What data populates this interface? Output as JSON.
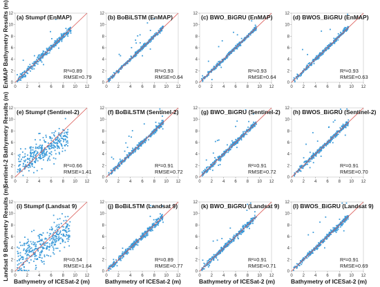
{
  "figure": {
    "row_labels": [
      "EnMAP Bathymetry Results (m)",
      "Sentinel-2 Bathymetry Results (m)",
      "Landsat 9 Bathymetry Results (m)"
    ],
    "col_label": "Bathymetry of ICESat-2 (m)",
    "point_color": "#3a9ad9",
    "line_color": "#d9534f"
  },
  "chart_data": [
    {
      "type": "scatter",
      "title": "(a) Stumpf (EnMAP)",
      "r2": "R²=0.89",
      "rmse": "RMSE=0.79",
      "xlim": [
        0,
        12
      ],
      "ylim": [
        0,
        12
      ],
      "xticks": [
        0,
        2,
        4,
        6,
        8,
        10,
        12
      ],
      "yticks": [
        0,
        2,
        4,
        6,
        8,
        10,
        12
      ],
      "x_range": [
        0.3,
        9.3
      ],
      "correlation": 0.89,
      "one_to_one_line": true
    },
    {
      "type": "scatter",
      "title": "(b) BoBiLSTM (EnMAP)",
      "r2": "R²=0.93",
      "rmse": "RMSE=0.64",
      "xlim": [
        0,
        12
      ],
      "ylim": [
        0,
        12
      ],
      "xticks": [
        0,
        2,
        4,
        6,
        8,
        10,
        12
      ],
      "yticks": [
        0,
        2,
        4,
        6,
        8,
        10,
        12
      ],
      "x_range": [
        0.3,
        9.5
      ],
      "correlation": 0.93,
      "one_to_one_line": true
    },
    {
      "type": "scatter",
      "title": "(c) BWO_BiGRU (EnMAP)",
      "r2": "R²=0.93",
      "rmse": "RMSE=0.64",
      "xlim": [
        0,
        12
      ],
      "ylim": [
        0,
        12
      ],
      "xticks": [
        0,
        2,
        4,
        6,
        8,
        10,
        12
      ],
      "yticks": [
        0,
        2,
        4,
        6,
        8,
        10,
        12
      ],
      "x_range": [
        0.3,
        9.5
      ],
      "correlation": 0.93,
      "one_to_one_line": true
    },
    {
      "type": "scatter",
      "title": "(d) BWOS_BiGRU (EnMAP)",
      "r2": "R²=0.93",
      "rmse": "RMSE=0.63",
      "xlim": [
        0,
        12
      ],
      "ylim": [
        0,
        12
      ],
      "xticks": [
        0,
        2,
        4,
        6,
        8,
        10,
        12
      ],
      "yticks": [
        0,
        2,
        4,
        6,
        8,
        10,
        12
      ],
      "x_range": [
        0.3,
        9.5
      ],
      "correlation": 0.93,
      "one_to_one_line": true
    },
    {
      "type": "scatter",
      "title": "(e) Stumpf (Sentinel-2)",
      "r2": "R²=0.66",
      "rmse": "RMSE=1.41",
      "xlim": [
        0,
        12
      ],
      "ylim": [
        0,
        12
      ],
      "xticks": [
        0,
        2,
        4,
        6,
        8,
        10,
        12
      ],
      "yticks": [
        0,
        2,
        4,
        6,
        8,
        10,
        12
      ],
      "x_range": [
        0.3,
        8.8
      ],
      "correlation": 0.66,
      "one_to_one_line": true
    },
    {
      "type": "scatter",
      "title": "(f) BoBiLSTM (Sentinel-2)",
      "r2": "R²=0.91",
      "rmse": "RMSE=0.72",
      "xlim": [
        0,
        12
      ],
      "ylim": [
        0,
        12
      ],
      "xticks": [
        0,
        2,
        4,
        6,
        8,
        10,
        12
      ],
      "yticks": [
        0,
        2,
        4,
        6,
        8,
        10,
        12
      ],
      "x_range": [
        0.3,
        9.5
      ],
      "correlation": 0.91,
      "one_to_one_line": true
    },
    {
      "type": "scatter",
      "title": "(g) BWO_BiGRU (Sentinel-2)",
      "r2": "R²=0.91",
      "rmse": "RMSE=0.72",
      "xlim": [
        0,
        12
      ],
      "ylim": [
        0,
        12
      ],
      "xticks": [
        0,
        2,
        4,
        6,
        8,
        10,
        12
      ],
      "yticks": [
        0,
        2,
        4,
        6,
        8,
        10,
        12
      ],
      "x_range": [
        0.3,
        9.5
      ],
      "correlation": 0.91,
      "one_to_one_line": true
    },
    {
      "type": "scatter",
      "title": "(h) BWOS_BiGRU (Sentinel-2)",
      "r2": "R²=0.91",
      "rmse": "RMSE=0.70",
      "xlim": [
        0,
        12
      ],
      "ylim": [
        0,
        12
      ],
      "xticks": [
        0,
        2,
        4,
        6,
        8,
        10,
        12
      ],
      "yticks": [
        0,
        2,
        4,
        6,
        8,
        10,
        12
      ],
      "x_range": [
        0.3,
        9.5
      ],
      "correlation": 0.91,
      "one_to_one_line": true
    },
    {
      "type": "scatter",
      "title": "(i) Stumpf (Landsat 9)",
      "r2": "R²=0.54",
      "rmse": "RMSE=1.64",
      "xlim": [
        0,
        12
      ],
      "ylim": [
        0,
        12
      ],
      "xticks": [
        0,
        2,
        4,
        6,
        8,
        10,
        12
      ],
      "yticks": [
        0,
        2,
        4,
        6,
        8,
        10,
        12
      ],
      "x_range": [
        0.3,
        9.2
      ],
      "correlation": 0.54,
      "one_to_one_line": true
    },
    {
      "type": "scatter",
      "title": "(j) BoBiLSTM (Landsat 9)",
      "r2": "R²=0.89",
      "rmse": "RMSE=0.77",
      "xlim": [
        0,
        12
      ],
      "ylim": [
        0,
        12
      ],
      "xticks": [
        0,
        2,
        4,
        6,
        8,
        10,
        12
      ],
      "yticks": [
        0,
        2,
        4,
        6,
        8,
        10,
        12
      ],
      "x_range": [
        0.3,
        9.5
      ],
      "correlation": 0.89,
      "one_to_one_line": true
    },
    {
      "type": "scatter",
      "title": "(k) BWO_BiGRU (Landsat 9)",
      "r2": "R²=0.91",
      "rmse": "RMSE=0.71",
      "xlim": [
        0,
        12
      ],
      "ylim": [
        0,
        12
      ],
      "xticks": [
        0,
        2,
        4,
        6,
        8,
        10,
        12
      ],
      "yticks": [
        0,
        2,
        4,
        6,
        8,
        10,
        12
      ],
      "x_range": [
        0.3,
        9.5
      ],
      "correlation": 0.91,
      "one_to_one_line": true
    },
    {
      "type": "scatter",
      "title": "(l) BWOS_BiGRU (Landsat 9)",
      "r2": "R²=0.91",
      "rmse": "RMSE=0.69",
      "xlim": [
        0,
        12
      ],
      "ylim": [
        0,
        12
      ],
      "xticks": [
        0,
        2,
        4,
        6,
        8,
        10,
        12
      ],
      "yticks": [
        0,
        2,
        4,
        6,
        8,
        10,
        12
      ],
      "x_range": [
        0.3,
        9.5
      ],
      "correlation": 0.91,
      "one_to_one_line": true
    }
  ]
}
